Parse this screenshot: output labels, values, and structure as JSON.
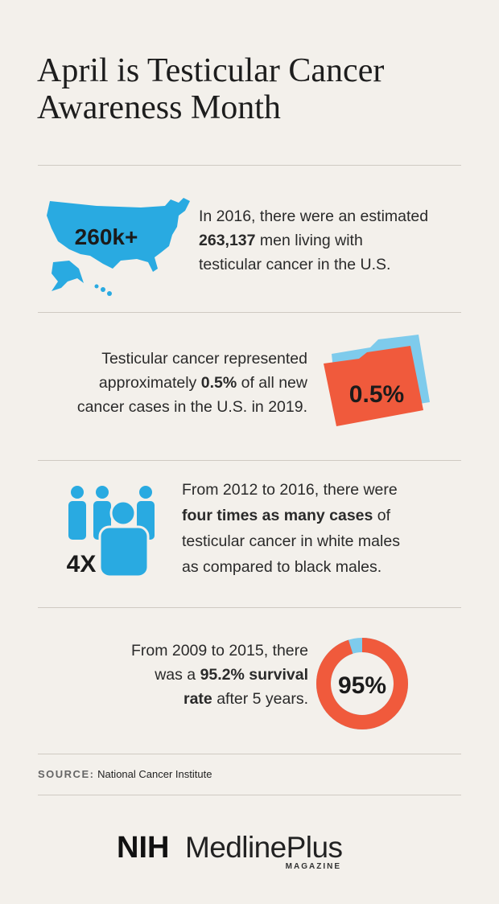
{
  "header": {
    "title_lines": [
      "April is Testicular Cancer",
      "Awareness Month"
    ]
  },
  "sections": [
    {
      "icon_label": "260k+",
      "lines": [
        [
          {
            "text": "In 2016, there were an estimated"
          }
        ],
        [
          {
            "text": "263,137",
            "bold": true
          },
          {
            "text": " men living with"
          }
        ],
        [
          {
            "text": "testicular cancer in the U.S."
          }
        ]
      ]
    },
    {
      "icon_label": "0.5%",
      "lines": [
        [
          {
            "text": "Testicular cancer represented"
          }
        ],
        [
          {
            "text": "approximately "
          },
          {
            "text": "0.5%",
            "bold": true
          },
          {
            "text": " of all new"
          }
        ],
        [
          {
            "text": "cancer cases in the U.S. in 2019."
          }
        ]
      ]
    },
    {
      "icon_label": "4X",
      "lines": [
        [
          {
            "text": "From 2012 to 2016, there were"
          }
        ],
        [
          {
            "text": "four times as many cases",
            "bold": true
          },
          {
            "text": " of"
          }
        ],
        [
          {
            "text": "testicular cancer in white males"
          }
        ],
        [
          {
            "text": "as compared to black males."
          }
        ]
      ]
    },
    {
      "icon": {
        "value": 95,
        "label": "95%"
      },
      "lines": [
        [
          {
            "text": "From 2009 to 2015, there"
          }
        ],
        [
          {
            "text": "was a "
          },
          {
            "text": "95.2% survival",
            "bold": true
          }
        ],
        [
          {
            "text": "rate",
            "bold": true
          },
          {
            "text": " after 5 years."
          }
        ]
      ]
    }
  ],
  "source": {
    "label": "SOURCE:",
    "text": "National Cancer Institute"
  },
  "logo": {
    "nih": "NIH",
    "name": "MedlinePlus",
    "sub": "MAGAZINE"
  }
}
